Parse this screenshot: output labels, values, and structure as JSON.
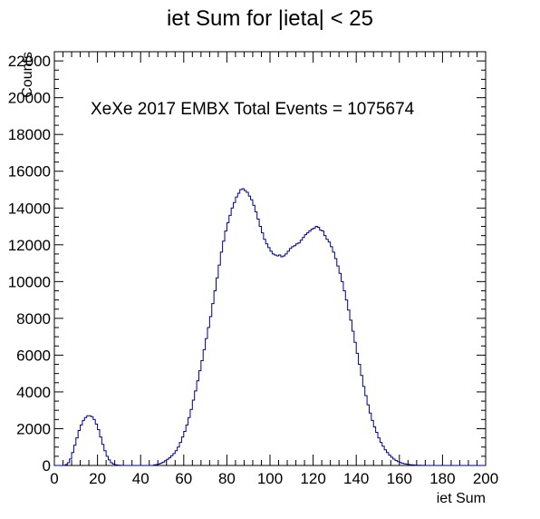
{
  "chart_data": {
    "type": "histogram",
    "title": "iet Sum for |ieta| < 25",
    "xlabel": "iet Sum",
    "ylabel": "Counts",
    "annotation": "XeXe 2017 EMBX Total Events = 1075674",
    "xlim": [
      0,
      200
    ],
    "ylim": [
      0,
      22500
    ],
    "grid": false,
    "line_color": "#000080",
    "x_ticks": [
      0,
      20,
      40,
      60,
      80,
      100,
      120,
      140,
      160,
      180,
      200
    ],
    "y_ticks": [
      0,
      2000,
      4000,
      6000,
      8000,
      10000,
      12000,
      14000,
      16000,
      18000,
      20000,
      22000
    ],
    "bin_width": 1,
    "bin_start": 0,
    "values": [
      0,
      0,
      0,
      0,
      0,
      50,
      150,
      350,
      700,
      1100,
      1500,
      1900,
      2200,
      2450,
      2600,
      2700,
      2700,
      2650,
      2500,
      2250,
      1950,
      1550,
      1150,
      800,
      500,
      300,
      150,
      80,
      40,
      20,
      10,
      0,
      0,
      0,
      0,
      0,
      0,
      0,
      0,
      0,
      0,
      0,
      0,
      0,
      0,
      0,
      30,
      50,
      80,
      120,
      180,
      250,
      330,
      420,
      530,
      650,
      800,
      1000,
      1250,
      1550,
      1850,
      2200,
      2600,
      3050,
      3550,
      4050,
      4600,
      5150,
      5700,
      6300,
      6900,
      7500,
      8100,
      8800,
      9500,
      10200,
      10900,
      11600,
      12200,
      12750,
      13200,
      13600,
      14000,
      14300,
      14600,
      14800,
      15000,
      15050,
      14950,
      14850,
      14650,
      14450,
      14150,
      13800,
      13400,
      13000,
      12650,
      12300,
      12050,
      11850,
      11650,
      11500,
      11450,
      11400,
      11450,
      11350,
      11400,
      11500,
      11650,
      11800,
      11900,
      11950,
      12050,
      12100,
      12250,
      12400,
      12550,
      12650,
      12750,
      12850,
      12900,
      13000,
      12950,
      12800,
      12750,
      12500,
      12300,
      12150,
      11900,
      11600,
      11250,
      10850,
      10450,
      10000,
      9500,
      9000,
      8450,
      7900,
      7300,
      6700,
      6100,
      5500,
      4900,
      4300,
      3800,
      3300,
      2850,
      2450,
      2100,
      1800,
      1500,
      1250,
      1050,
      850,
      700,
      560,
      450,
      350,
      270,
      210,
      160,
      120,
      90,
      70,
      55,
      40,
      30,
      20,
      15,
      10,
      8,
      5,
      3,
      2,
      0,
      0,
      0,
      0,
      0,
      0,
      0,
      0,
      0,
      0,
      0,
      0,
      0,
      0,
      0,
      0,
      0,
      0,
      0,
      0,
      0,
      0,
      0,
      0,
      0,
      0
    ]
  }
}
